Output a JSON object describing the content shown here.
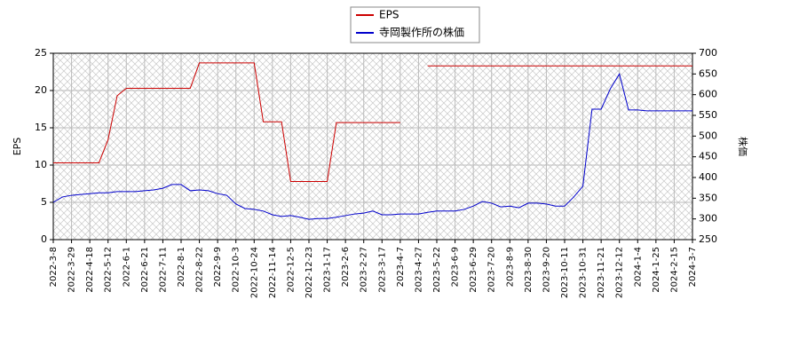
{
  "chart_data": {
    "type": "line",
    "categories": [
      "2022-3-8",
      null,
      "2022-3-29",
      null,
      "2022-4-18",
      null,
      "2022-5-12",
      null,
      "2022-6-1",
      null,
      "2022-6-21",
      null,
      "2022-7-11",
      null,
      "2022-8-1",
      null,
      "2022-8-22",
      null,
      "2022-9-9",
      null,
      "2022-10-3",
      null,
      "2022-10-24",
      null,
      "2022-11-14",
      null,
      "2022-12-5",
      null,
      "2022-12-23",
      null,
      "2023-1-17",
      null,
      "2023-2-6",
      null,
      "2023-2-27",
      null,
      "2023-3-17",
      null,
      "2023-4-7",
      null,
      "2023-4-27",
      null,
      "2023-5-22",
      null,
      "2023-6-9",
      null,
      "2023-6-29",
      null,
      "2023-7-20",
      null,
      "2023-8-9",
      null,
      "2023-8-30",
      null,
      "2023-9-20",
      null,
      "2023-10-11",
      null,
      "2023-10-31",
      null,
      "2023-11-21",
      null,
      "2023-12-12",
      null,
      "2024-1-4",
      null,
      "2024-1-25",
      null,
      "2024-2-15",
      null,
      "2024-3-7"
    ],
    "series": [
      {
        "name": "EPS",
        "color": "#cc0000",
        "axis": "y",
        "values": [
          10.3,
          10.3,
          10.3,
          10.3,
          10.3,
          10.3,
          13.4,
          19.3,
          20.3,
          20.3,
          20.3,
          20.3,
          20.3,
          20.3,
          20.3,
          20.3,
          23.7,
          23.7,
          23.7,
          23.7,
          23.7,
          23.7,
          23.7,
          15.8,
          15.8,
          15.8,
          7.8,
          7.8,
          7.8,
          7.8,
          7.8,
          15.7,
          15.7,
          15.7,
          15.7,
          15.7,
          15.7,
          15.7,
          15.7,
          null,
          null,
          23.3,
          23.3,
          23.3,
          23.3,
          23.3,
          23.3,
          23.3,
          23.3,
          23.3,
          23.3,
          23.3,
          23.3,
          23.3,
          23.3,
          23.3,
          23.3,
          23.3,
          23.3,
          23.3,
          23.3,
          23.3,
          23.3,
          23.3,
          23.3,
          23.3,
          23.3,
          23.3,
          23.3,
          23.3,
          23.3
        ]
      },
      {
        "name": "寺岡製作所の株価",
        "color": "#0000cc",
        "axis": "y2",
        "values": [
          340,
          353,
          357,
          359,
          361,
          363,
          363,
          366,
          366,
          366,
          368,
          370,
          374,
          383,
          383,
          368,
          370,
          368,
          361,
          357,
          336,
          325,
          323,
          319,
          310,
          306,
          308,
          304,
          299,
          301,
          301,
          304,
          308,
          312,
          314,
          319,
          310,
          310,
          312,
          312,
          312,
          316,
          319,
          319,
          319,
          323,
          331,
          342,
          338,
          329,
          331,
          327,
          338,
          338,
          336,
          331,
          331,
          353,
          379,
          565,
          565,
          614,
          650,
          563,
          563,
          561,
          561,
          561,
          561,
          561,
          561
        ]
      }
    ],
    "ylabel": "EPS",
    "y2label": "株価",
    "ylim": [
      0,
      25
    ],
    "yticks": [
      0,
      5,
      10,
      15,
      20,
      25
    ],
    "y2lim": [
      250,
      700
    ],
    "y2ticks": [
      250,
      300,
      350,
      400,
      450,
      500,
      550,
      600,
      650,
      700
    ],
    "grid": true,
    "legend": "top"
  }
}
